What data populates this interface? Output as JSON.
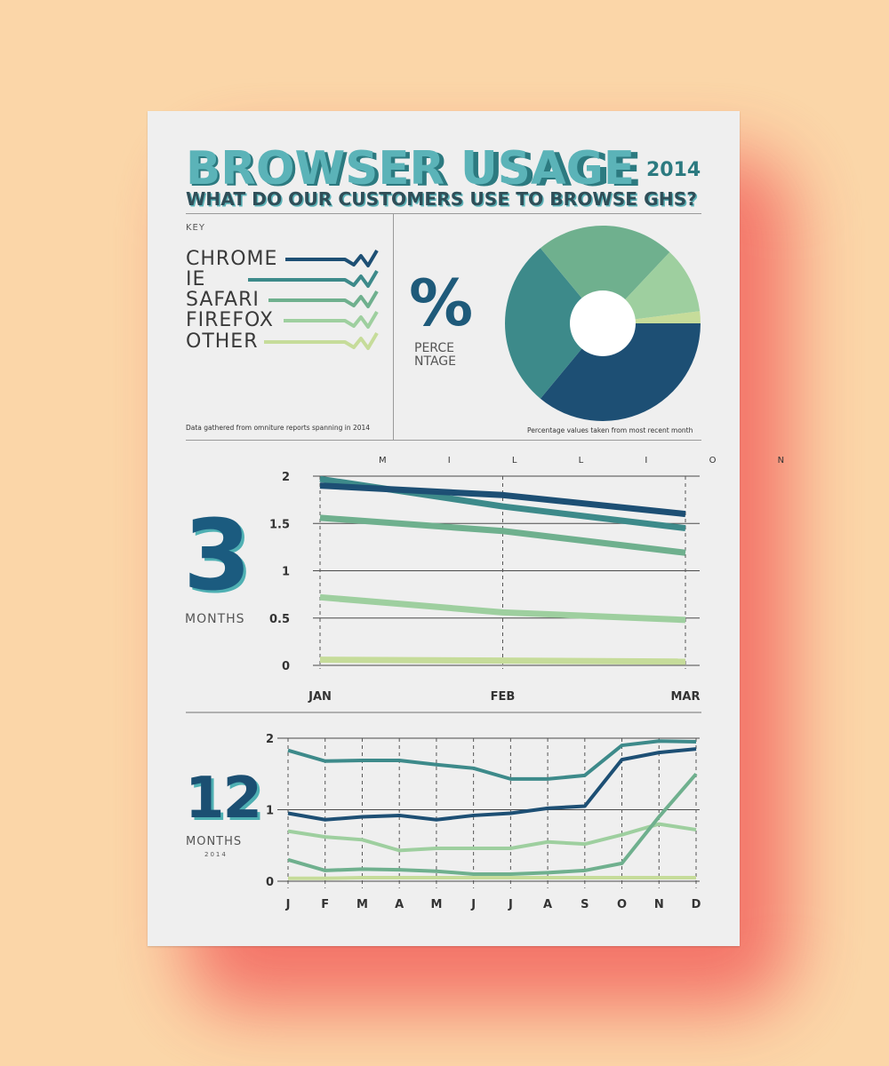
{
  "title": "BROWSER USAGE",
  "year": "2014",
  "subtitle": "WHAT DO OUR CUSTOMERS USE TO BROWSE GHS?",
  "key_label": "KEY",
  "key_note": "Data gathered from omniture reports spanning in 2014",
  "pie_note": "Percentage values taken from most recent month",
  "percent_symbol": "%",
  "percent_label_1": "PERCE",
  "percent_label_2": "NTAGE",
  "units_label": "M I L L I O N",
  "three_number": "3",
  "three_label": "MONTHS",
  "twelve_number": "12",
  "twelve_label": "MONTHS",
  "twelve_sub": "2014",
  "colors": {
    "chrome": "#1d4f74",
    "ie": "#3d8a8a",
    "safari": "#6fb08e",
    "firefox": "#9ecf9f",
    "other": "#c6dc9a",
    "title": "#5bb3b8"
  },
  "chart_data": [
    {
      "type": "pie",
      "title": "",
      "legend": [
        "CHROME",
        "IE",
        "SAFARI",
        "FIREFOX",
        "OTHER"
      ],
      "series": [
        {
          "name": "CHROME",
          "value": 36
        },
        {
          "name": "IE",
          "value": 28
        },
        {
          "name": "SAFARI",
          "value": 23
        },
        {
          "name": "FIREFOX",
          "value": 11
        },
        {
          "name": "OTHER",
          "value": 2
        }
      ]
    },
    {
      "type": "line",
      "title": "3 MONTHS",
      "ylabel": "MILLION",
      "categories": [
        "JAN",
        "FEB",
        "MAR"
      ],
      "yticks": [
        "0",
        "0.5",
        "1",
        "1.5",
        "2"
      ],
      "ylim": [
        0,
        2
      ],
      "grid": true,
      "series": [
        {
          "name": "CHROME",
          "values": [
            1.9,
            1.8,
            1.6
          ]
        },
        {
          "name": "IE",
          "values": [
            1.97,
            1.68,
            1.45
          ]
        },
        {
          "name": "SAFARI",
          "values": [
            1.56,
            1.42,
            1.19
          ]
        },
        {
          "name": "FIREFOX",
          "values": [
            0.72,
            0.56,
            0.48
          ]
        },
        {
          "name": "OTHER",
          "values": [
            0.06,
            0.05,
            0.04
          ]
        }
      ]
    },
    {
      "type": "line",
      "title": "12 MONTHS 2014",
      "categories": [
        "J",
        "F",
        "M",
        "A",
        "M",
        "J",
        "J",
        "A",
        "S",
        "O",
        "N",
        "D"
      ],
      "yticks": [
        "0",
        "1",
        "2"
      ],
      "ylim": [
        0,
        2
      ],
      "grid": true,
      "series": [
        {
          "name": "CHROME",
          "values": [
            0.95,
            0.86,
            0.9,
            0.92,
            0.86,
            0.92,
            0.95,
            1.02,
            1.05,
            1.7,
            1.8,
            1.85
          ]
        },
        {
          "name": "IE",
          "values": [
            1.83,
            1.68,
            1.69,
            1.69,
            1.63,
            1.58,
            1.43,
            1.43,
            1.48,
            1.9,
            1.96,
            1.95
          ]
        },
        {
          "name": "SAFARI",
          "values": [
            0.3,
            0.15,
            0.17,
            0.16,
            0.14,
            0.1,
            0.1,
            0.12,
            0.15,
            0.25,
            0.9,
            1.5
          ]
        },
        {
          "name": "FIREFOX",
          "values": [
            0.7,
            0.62,
            0.58,
            0.43,
            0.46,
            0.46,
            0.46,
            0.55,
            0.52,
            0.65,
            0.8,
            0.72
          ]
        },
        {
          "name": "OTHER",
          "values": [
            0.04,
            0.04,
            0.05,
            0.05,
            0.05,
            0.05,
            0.05,
            0.05,
            0.05,
            0.05,
            0.05,
            0.05
          ]
        }
      ]
    }
  ]
}
